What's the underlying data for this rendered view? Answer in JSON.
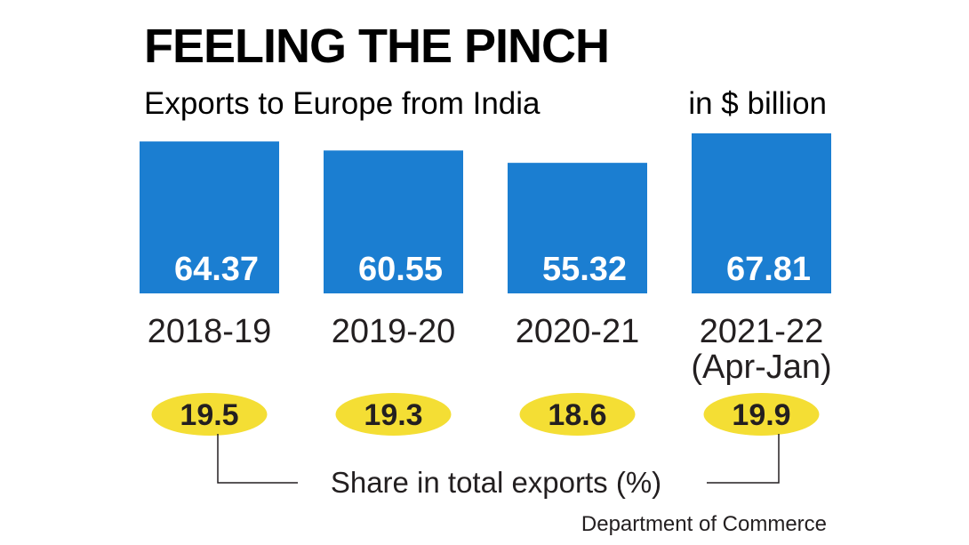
{
  "chart_data": {
    "type": "bar",
    "title": "FEELING THE PINCH",
    "subtitle": "Exports to Europe from India",
    "unit": "in $ billion",
    "categories": [
      "2018-19",
      "2019-20",
      "2020-21",
      "2021-22"
    ],
    "category_notes": [
      "",
      "",
      "",
      "(Apr-Jan)"
    ],
    "values": [
      64.37,
      60.55,
      55.32,
      67.81
    ],
    "value_labels": [
      "64.37",
      "60.55",
      "55.32",
      "67.81"
    ],
    "share_in_total_exports": [
      "19.5",
      "19.3",
      "18.6",
      "19.9"
    ],
    "share_caption": "Share in total exports (%)",
    "source": "Department of Commerce",
    "ylim": [
      0,
      70
    ],
    "colors": {
      "bar": "#1b7ed1",
      "share_bubble": "#f4de34",
      "text": "#231f20"
    }
  }
}
